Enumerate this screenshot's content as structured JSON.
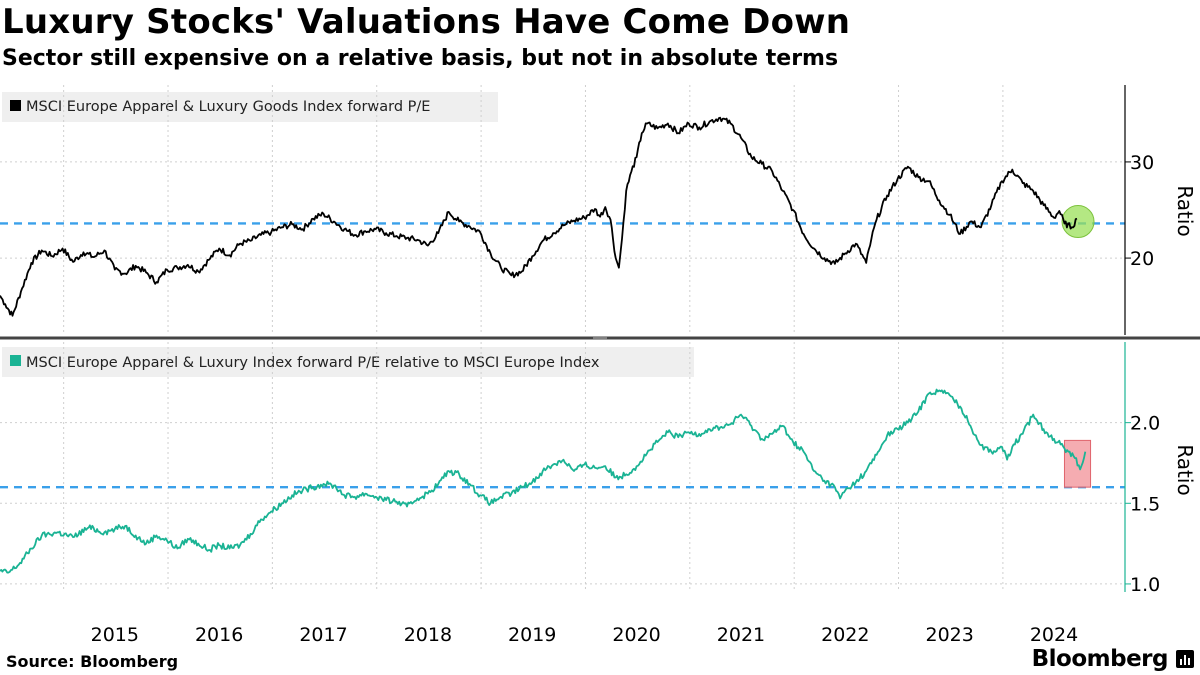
{
  "header": {
    "title": "Luxury Stocks' Valuations Have Come Down",
    "subtitle": "Sector still expensive on a relative basis, but not in absolute terms"
  },
  "footer": {
    "source": "Source: Bloomberg",
    "brand": "Bloomberg"
  },
  "colors": {
    "series_top": "#000000",
    "series_bottom": "#1ab394",
    "dashed_line": "#3aa0ea",
    "highlight_circle": "#9be05a",
    "highlight_rect": "#f4a3a8",
    "grid": "#d0d0d0"
  },
  "chart_data": [
    {
      "type": "line",
      "panel": "top",
      "legend": "MSCI Europe Apparel & Luxury Goods Index forward P/E",
      "ylabel": "Ratio",
      "ylim": [
        12,
        38
      ],
      "yticks": [
        20,
        30
      ],
      "reference_line": 23.6,
      "highlight": {
        "shape": "circle",
        "x": 2024.33,
        "y": 23.8
      },
      "x_ticks": [
        "2015",
        "2016",
        "2017",
        "2018",
        "2019",
        "2020",
        "2021",
        "2022",
        "2023",
        "2024"
      ],
      "series": [
        {
          "name": "MSCI Europe Apparel & Luxury Goods Index forward P/E",
          "points": [
            [
              2014.0,
              16.1
            ],
            [
              2014.05,
              15.2
            ],
            [
              2014.12,
              14.0
            ],
            [
              2014.2,
              16.5
            ],
            [
              2014.3,
              19.5
            ],
            [
              2014.4,
              20.8
            ],
            [
              2014.5,
              20.2
            ],
            [
              2014.6,
              21.0
            ],
            [
              2014.7,
              19.6
            ],
            [
              2014.8,
              20.6
            ],
            [
              2014.9,
              20.1
            ],
            [
              2015.0,
              20.8
            ],
            [
              2015.1,
              18.8
            ],
            [
              2015.2,
              18.4
            ],
            [
              2015.3,
              19.2
            ],
            [
              2015.4,
              18.5
            ],
            [
              2015.5,
              17.5
            ],
            [
              2015.6,
              18.8
            ],
            [
              2015.7,
              19.0
            ],
            [
              2015.8,
              19.3
            ],
            [
              2015.9,
              18.6
            ],
            [
              2016.0,
              19.8
            ],
            [
              2016.1,
              21.0
            ],
            [
              2016.2,
              20.3
            ],
            [
              2016.3,
              21.5
            ],
            [
              2016.4,
              21.8
            ],
            [
              2016.5,
              22.4
            ],
            [
              2016.6,
              22.7
            ],
            [
              2016.7,
              23.2
            ],
            [
              2016.8,
              23.5
            ],
            [
              2016.9,
              23.0
            ],
            [
              2017.0,
              24.1
            ],
            [
              2017.1,
              24.6
            ],
            [
              2017.2,
              23.8
            ],
            [
              2017.3,
              23.0
            ],
            [
              2017.4,
              22.4
            ],
            [
              2017.5,
              22.8
            ],
            [
              2017.6,
              23.0
            ],
            [
              2017.7,
              22.6
            ],
            [
              2017.8,
              22.3
            ],
            [
              2017.9,
              22.1
            ],
            [
              2018.0,
              21.9
            ],
            [
              2018.1,
              21.3
            ],
            [
              2018.2,
              22.6
            ],
            [
              2018.3,
              24.8
            ],
            [
              2018.4,
              23.8
            ],
            [
              2018.5,
              23.3
            ],
            [
              2018.6,
              22.7
            ],
            [
              2018.7,
              20.5
            ],
            [
              2018.8,
              19.0
            ],
            [
              2018.9,
              18.2
            ],
            [
              2019.0,
              18.6
            ],
            [
              2019.1,
              20.2
            ],
            [
              2019.2,
              21.8
            ],
            [
              2019.3,
              22.6
            ],
            [
              2019.4,
              23.4
            ],
            [
              2019.5,
              23.9
            ],
            [
              2019.6,
              24.2
            ],
            [
              2019.7,
              25.1
            ],
            [
              2019.75,
              24.3
            ],
            [
              2019.8,
              25.3
            ],
            [
              2019.85,
              24.0
            ],
            [
              2019.9,
              20.0
            ],
            [
              2019.93,
              19.0
            ],
            [
              2019.96,
              22.0
            ],
            [
              2020.0,
              27.0
            ],
            [
              2020.05,
              29.0
            ],
            [
              2020.1,
              30.5
            ],
            [
              2020.15,
              33.0
            ],
            [
              2020.2,
              34.0
            ],
            [
              2020.3,
              33.5
            ],
            [
              2020.4,
              34.0
            ],
            [
              2020.5,
              33.0
            ],
            [
              2020.6,
              34.0
            ],
            [
              2020.7,
              33.6
            ],
            [
              2020.8,
              34.2
            ],
            [
              2020.9,
              34.6
            ],
            [
              2021.0,
              34.0
            ],
            [
              2021.1,
              32.5
            ],
            [
              2021.2,
              30.5
            ],
            [
              2021.3,
              29.8
            ],
            [
              2021.4,
              29.0
            ],
            [
              2021.5,
              27.0
            ],
            [
              2021.6,
              25.0
            ],
            [
              2021.7,
              22.5
            ],
            [
              2021.8,
              21.0
            ],
            [
              2021.9,
              20.0
            ],
            [
              2022.0,
              19.4
            ],
            [
              2022.1,
              20.5
            ],
            [
              2022.2,
              21.5
            ],
            [
              2022.3,
              19.5
            ],
            [
              2022.35,
              22.0
            ],
            [
              2022.4,
              24.0
            ],
            [
              2022.5,
              26.5
            ],
            [
              2022.6,
              28.2
            ],
            [
              2022.7,
              29.5
            ],
            [
              2022.8,
              28.4
            ],
            [
              2022.9,
              28.0
            ],
            [
              2023.0,
              26.0
            ],
            [
              2023.1,
              24.5
            ],
            [
              2023.2,
              22.5
            ],
            [
              2023.3,
              23.8
            ],
            [
              2023.4,
              23.2
            ],
            [
              2023.5,
              25.5
            ],
            [
              2023.6,
              28.0
            ],
            [
              2023.7,
              29.2
            ],
            [
              2023.8,
              27.8
            ],
            [
              2023.9,
              27.0
            ],
            [
              2024.0,
              25.5
            ],
            [
              2024.1,
              24.2
            ],
            [
              2024.15,
              24.9
            ],
            [
              2024.2,
              23.6
            ],
            [
              2024.27,
              23.2
            ],
            [
              2024.32,
              24.1
            ]
          ]
        }
      ]
    },
    {
      "type": "line",
      "panel": "bottom",
      "legend": "MSCI Europe Apparel & Luxury Index forward P/E relative to MSCI Europe Index",
      "ylabel": "Ratio",
      "ylim": [
        0.95,
        2.5
      ],
      "yticks": [
        "1.0",
        "1.5",
        "2.0"
      ],
      "reference_line": 1.6,
      "highlight": {
        "shape": "rect",
        "x0": 2024.2,
        "x1": 2024.45,
        "y0": 1.6,
        "y1": 1.89
      },
      "series": [
        {
          "name": "MSCI Europe Apparel & Luxury Index forward P/E relative to MSCI Europe Index",
          "points": [
            [
              2014.0,
              1.08
            ],
            [
              2014.08,
              1.07
            ],
            [
              2014.18,
              1.12
            ],
            [
              2014.3,
              1.22
            ],
            [
              2014.4,
              1.3
            ],
            [
              2014.55,
              1.32
            ],
            [
              2014.7,
              1.29
            ],
            [
              2014.85,
              1.35
            ],
            [
              2015.0,
              1.32
            ],
            [
              2015.1,
              1.34
            ],
            [
              2015.2,
              1.36
            ],
            [
              2015.3,
              1.3
            ],
            [
              2015.4,
              1.25
            ],
            [
              2015.5,
              1.3
            ],
            [
              2015.6,
              1.27
            ],
            [
              2015.7,
              1.22
            ],
            [
              2015.8,
              1.28
            ],
            [
              2015.9,
              1.25
            ],
            [
              2016.0,
              1.21
            ],
            [
              2016.1,
              1.24
            ],
            [
              2016.2,
              1.22
            ],
            [
              2016.3,
              1.24
            ],
            [
              2016.4,
              1.31
            ],
            [
              2016.5,
              1.4
            ],
            [
              2016.6,
              1.45
            ],
            [
              2016.7,
              1.5
            ],
            [
              2016.8,
              1.55
            ],
            [
              2016.9,
              1.58
            ],
            [
              2017.0,
              1.6
            ],
            [
              2017.1,
              1.62
            ],
            [
              2017.2,
              1.61
            ],
            [
              2017.3,
              1.55
            ],
            [
              2017.4,
              1.54
            ],
            [
              2017.5,
              1.56
            ],
            [
              2017.6,
              1.54
            ],
            [
              2017.7,
              1.52
            ],
            [
              2017.8,
              1.51
            ],
            [
              2017.9,
              1.48
            ],
            [
              2018.0,
              1.53
            ],
            [
              2018.1,
              1.56
            ],
            [
              2018.2,
              1.62
            ],
            [
              2018.3,
              1.7
            ],
            [
              2018.4,
              1.68
            ],
            [
              2018.5,
              1.62
            ],
            [
              2018.6,
              1.55
            ],
            [
              2018.7,
              1.5
            ],
            [
              2018.8,
              1.54
            ],
            [
              2018.9,
              1.56
            ],
            [
              2019.0,
              1.6
            ],
            [
              2019.1,
              1.63
            ],
            [
              2019.2,
              1.7
            ],
            [
              2019.3,
              1.74
            ],
            [
              2019.4,
              1.77
            ],
            [
              2019.5,
              1.7
            ],
            [
              2019.6,
              1.74
            ],
            [
              2019.7,
              1.72
            ],
            [
              2019.8,
              1.73
            ],
            [
              2019.9,
              1.66
            ],
            [
              2020.0,
              1.68
            ],
            [
              2020.1,
              1.73
            ],
            [
              2020.2,
              1.81
            ],
            [
              2020.3,
              1.88
            ],
            [
              2020.4,
              1.94
            ],
            [
              2020.5,
              1.91
            ],
            [
              2020.6,
              1.94
            ],
            [
              2020.7,
              1.93
            ],
            [
              2020.8,
              1.96
            ],
            [
              2020.9,
              1.97
            ],
            [
              2021.0,
              1.99
            ],
            [
              2021.1,
              2.05
            ],
            [
              2021.2,
              1.98
            ],
            [
              2021.3,
              1.9
            ],
            [
              2021.4,
              1.93
            ],
            [
              2021.5,
              1.98
            ],
            [
              2021.6,
              1.88
            ],
            [
              2021.7,
              1.82
            ],
            [
              2021.8,
              1.7
            ],
            [
              2021.9,
              1.64
            ],
            [
              2022.0,
              1.6
            ],
            [
              2022.05,
              1.53
            ],
            [
              2022.1,
              1.58
            ],
            [
              2022.2,
              1.63
            ],
            [
              2022.3,
              1.7
            ],
            [
              2022.4,
              1.8
            ],
            [
              2022.5,
              1.92
            ],
            [
              2022.6,
              1.96
            ],
            [
              2022.7,
              2.0
            ],
            [
              2022.8,
              2.07
            ],
            [
              2022.9,
              2.18
            ],
            [
              2023.0,
              2.2
            ],
            [
              2023.1,
              2.17
            ],
            [
              2023.2,
              2.1
            ],
            [
              2023.3,
              1.98
            ],
            [
              2023.4,
              1.86
            ],
            [
              2023.5,
              1.82
            ],
            [
              2023.6,
              1.85
            ],
            [
              2023.65,
              1.77
            ],
            [
              2023.7,
              1.85
            ],
            [
              2023.8,
              1.93
            ],
            [
              2023.9,
              2.05
            ],
            [
              2024.0,
              1.96
            ],
            [
              2024.1,
              1.9
            ],
            [
              2024.2,
              1.84
            ],
            [
              2024.25,
              1.82
            ],
            [
              2024.3,
              1.78
            ],
            [
              2024.35,
              1.71
            ],
            [
              2024.4,
              1.82
            ]
          ]
        }
      ]
    }
  ]
}
